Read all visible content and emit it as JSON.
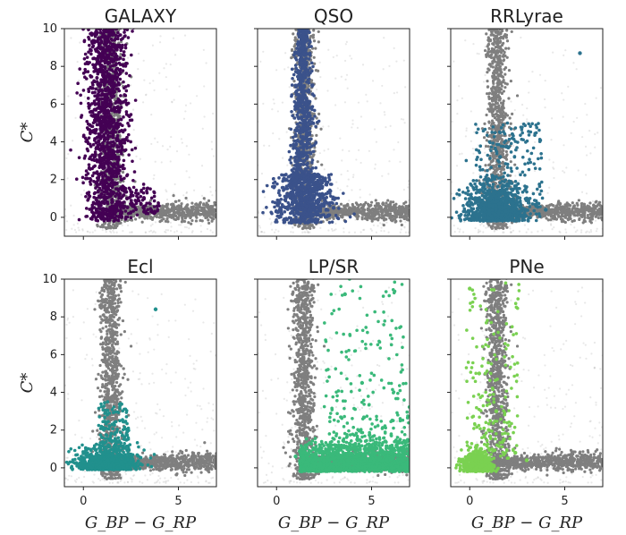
{
  "colors": {
    "background_points": "#7f7f7f",
    "faint_points": "#bdbdbd",
    "axis": "#222222"
  },
  "chart_data": [
    {
      "type": "scatter",
      "title": "GALAXY",
      "ylabel": "C*",
      "xlabel": "",
      "xlim": [
        -1,
        7
      ],
      "ylim": [
        -1,
        10
      ],
      "xticks": [
        "0",
        "5"
      ],
      "yticks": [
        "0",
        "2",
        "4",
        "6",
        "8",
        "10"
      ],
      "color": "#440154",
      "series": [
        {
          "x": [
            0.8,
            1.0,
            1.2,
            1.5,
            1.8,
            2.0,
            2.3,
            0.6,
            2.6,
            3.2
          ],
          "y": [
            9.5,
            8.0,
            6.5,
            5.0,
            3.5,
            2.0,
            1.0,
            4.5,
            0.6,
            0.3
          ]
        }
      ]
    },
    {
      "type": "scatter",
      "title": "QSO",
      "ylabel": "",
      "xlabel": "",
      "xlim": [
        -1,
        7
      ],
      "ylim": [
        -1,
        10
      ],
      "xticks": [
        "0",
        "5"
      ],
      "yticks": [
        "0",
        "2",
        "4",
        "6",
        "8",
        "10"
      ],
      "color": "#3b528b",
      "series": [
        {
          "x": [
            1.3,
            1.5,
            1.2,
            1.6,
            1.0,
            0.5,
            2.0,
            2.6,
            3.0,
            0.2
          ],
          "y": [
            9.0,
            7.5,
            6.0,
            4.5,
            3.0,
            2.0,
            1.5,
            0.8,
            0.5,
            0.3
          ]
        }
      ]
    },
    {
      "type": "scatter",
      "title": "RRLyrae",
      "ylabel": "",
      "xlabel": "",
      "xlim": [
        -1,
        7
      ],
      "ylim": [
        -1,
        10
      ],
      "xticks": [
        "0",
        "5"
      ],
      "yticks": [
        "0",
        "2",
        "4",
        "6",
        "8",
        "10"
      ],
      "color": "#2c728e",
      "series": [
        {
          "x": [
            0.4,
            0.8,
            1.2,
            1.6,
            2.0,
            2.5,
            3.0,
            3.5,
            4.0,
            5.8
          ],
          "y": [
            1.0,
            1.5,
            2.2,
            3.2,
            1.2,
            0.8,
            1.0,
            0.6,
            0.4,
            8.7
          ]
        }
      ]
    },
    {
      "type": "scatter",
      "title": "Ecl",
      "ylabel": "C*",
      "xlabel": "G_BP − G_RP",
      "xlim": [
        -1,
        7
      ],
      "ylim": [
        -1,
        10
      ],
      "xticks": [
        "0",
        "5"
      ],
      "yticks": [
        "0",
        "2",
        "4",
        "6",
        "8",
        "10"
      ],
      "color": "#21908d",
      "series": [
        {
          "x": [
            0.0,
            0.5,
            1.0,
            1.5,
            2.0,
            2.5,
            3.0,
            3.8,
            1.2,
            0.2
          ],
          "y": [
            0.3,
            0.5,
            0.8,
            1.4,
            0.6,
            0.3,
            0.2,
            8.4,
            2.4,
            1.0
          ]
        }
      ]
    },
    {
      "type": "scatter",
      "title": "LP/SR",
      "ylabel": "",
      "xlabel": "G_BP − G_RP",
      "xlim": [
        -1,
        7
      ],
      "ylim": [
        -1,
        10
      ],
      "xticks": [
        "0",
        "5"
      ],
      "yticks": [
        "0",
        "2",
        "4",
        "6",
        "8",
        "10"
      ],
      "color": "#3ab97a",
      "series": [
        {
          "x": [
            1.0,
            1.5,
            2.0,
            3.0,
            4.0,
            5.0,
            5.8,
            6.5,
            4.5,
            3.6
          ],
          "y": [
            0.6,
            0.8,
            1.0,
            0.5,
            0.7,
            1.2,
            0.4,
            0.3,
            4.5,
            9.2
          ]
        }
      ]
    },
    {
      "type": "scatter",
      "title": "PNe",
      "ylabel": "",
      "xlabel": "G_BP − G_RP",
      "xlim": [
        -1,
        7
      ],
      "ylim": [
        -1,
        10
      ],
      "xticks": [
        "0",
        "5"
      ],
      "yticks": [
        "0",
        "2",
        "4",
        "6",
        "8",
        "10"
      ],
      "color": "#7ad151",
      "series": [
        {
          "x": [
            -0.2,
            0.2,
            0.6,
            1.0,
            1.4,
            1.8,
            2.4,
            3.0,
            0.5,
            0.0
          ],
          "y": [
            0.3,
            0.6,
            1.0,
            2.0,
            3.0,
            1.5,
            0.8,
            0.4,
            5.0,
            9.5
          ]
        }
      ]
    }
  ]
}
